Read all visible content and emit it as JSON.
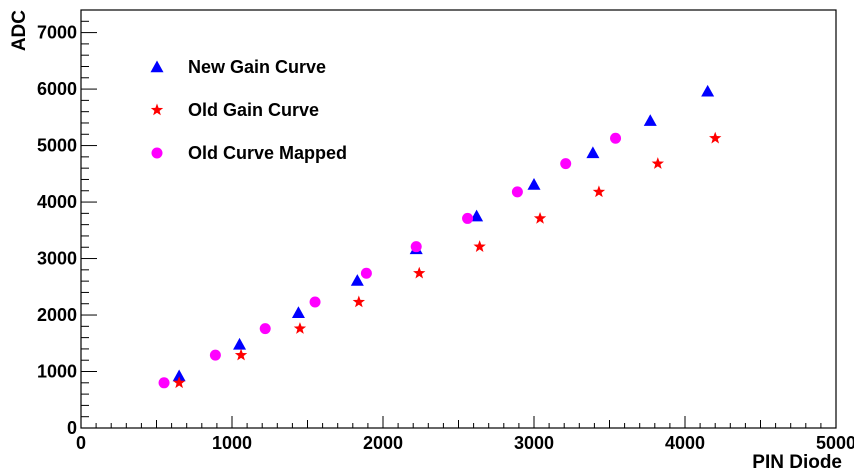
{
  "chart_data": {
    "type": "scatter",
    "title": "",
    "xlabel": "PIN Diode",
    "ylabel": "ADC",
    "xlim": [
      0,
      5000
    ],
    "ylim": [
      0,
      7400
    ],
    "xticks": [
      0,
      1000,
      2000,
      3000,
      4000,
      5000
    ],
    "yticks": [
      0,
      1000,
      2000,
      3000,
      4000,
      5000,
      6000,
      7000
    ],
    "grid": false,
    "legend_position": "top-left",
    "series": [
      {
        "name": "New Gain Curve",
        "marker": "triangle",
        "color": "#0000ff",
        "x": [
          650,
          1050,
          1440,
          1830,
          2220,
          2620,
          3000,
          3390,
          3770,
          4150
        ],
        "y": [
          920,
          1480,
          2040,
          2610,
          3170,
          3750,
          4310,
          4870,
          5440,
          5960
        ]
      },
      {
        "name": "Old Gain Curve",
        "marker": "star",
        "color": "#ff0000",
        "x": [
          650,
          1060,
          1450,
          1840,
          2240,
          2640,
          3040,
          3430,
          3820,
          4200
        ],
        "y": [
          800,
          1290,
          1760,
          2230,
          2740,
          3210,
          3710,
          4180,
          4680,
          5130
        ]
      },
      {
        "name": "Old Curve Mapped",
        "marker": "circle",
        "color": "#ff00ff",
        "x": [
          550,
          890,
          1220,
          1550,
          1890,
          2220,
          2560,
          2890,
          3210,
          3540
        ],
        "y": [
          800,
          1290,
          1760,
          2230,
          2740,
          3210,
          3710,
          4180,
          4680,
          5130
        ]
      }
    ]
  }
}
